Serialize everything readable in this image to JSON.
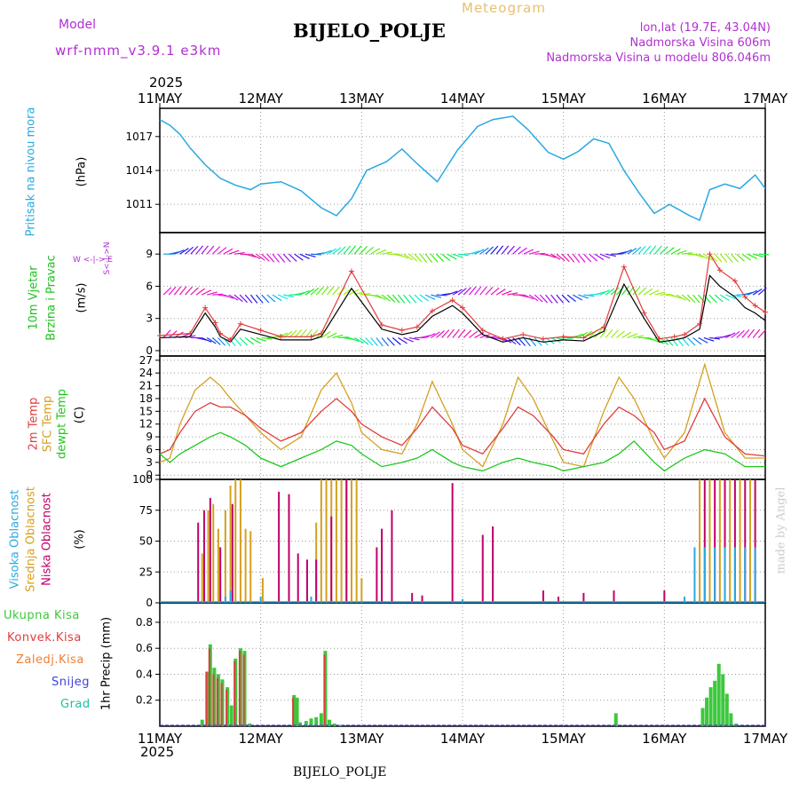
{
  "header": {
    "model_label": "Model",
    "model_name": "wrf-nmm_v3.9.1 e3km",
    "title": "BIJELO_POLJE",
    "subtitle": "Meteogram",
    "lonlat": "lon,lat (19.7E, 43.04N)",
    "elevation": "Nadmorska Visina 606m",
    "model_elevation": "Nadmorska Visina u modelu 806.046m",
    "year_top": "2025",
    "year_bottom": "2025",
    "footer": "BIJELO_POLJE",
    "credit": "made by Angel"
  },
  "colors": {
    "pressure": "#2aa8e0",
    "temp2m": "#e03c3c",
    "sfc_temp": "#d4a020",
    "dewpt": "#1ec81e",
    "high_cloud": "#2aa8e0",
    "mid_cloud": "#d4a020",
    "low_cloud": "#c0006a",
    "total_precip": "#3cc83c",
    "conv_precip": "#e03c3c",
    "frz_precip": "#f08030",
    "snow": "#4040e0",
    "graupel": "#20c0a0",
    "wind_label": "#20c020",
    "dir_legend": "#b030d0"
  },
  "chart_data": [
    {
      "type": "line",
      "name": "pressure",
      "ylabel_outer": "Pritisak na nivou mora",
      "ylabel_inner": "(hPa)",
      "x_days": [
        "11MAY",
        "12MAY",
        "13MAY",
        "14MAY",
        "15MAY",
        "16MAY",
        "17MAY"
      ],
      "ylim": [
        1008.5,
        1019.5
      ],
      "yticks": [
        1011,
        1014,
        1017
      ],
      "series": [
        {
          "name": "MSLP",
          "x": [
            0,
            0.1,
            0.2,
            0.3,
            0.45,
            0.6,
            0.75,
            0.9,
            1.0,
            1.2,
            1.4,
            1.6,
            1.75,
            1.9,
            2.05,
            2.25,
            2.4,
            2.55,
            2.75,
            2.95,
            3.15,
            3.3,
            3.5,
            3.65,
            3.85,
            4.0,
            4.15,
            4.3,
            4.45,
            4.6,
            4.75,
            4.9,
            5.05,
            5.25,
            5.35,
            5.45,
            5.6,
            5.75,
            5.9,
            6.0
          ],
          "values": [
            1018.5,
            1018.0,
            1017.2,
            1016.0,
            1014.5,
            1013.3,
            1012.7,
            1012.3,
            1012.8,
            1013.0,
            1012.2,
            1010.7,
            1010.0,
            1011.5,
            1014.0,
            1014.8,
            1015.9,
            1014.6,
            1013.0,
            1015.8,
            1017.9,
            1018.5,
            1018.8,
            1017.6,
            1015.6,
            1015.0,
            1015.7,
            1016.8,
            1016.4,
            1014.0,
            1012.0,
            1010.2,
            1011.0,
            1010.0,
            1009.6,
            1012.3,
            1012.8,
            1012.4,
            1013.6,
            1012.4
          ]
        }
      ]
    },
    {
      "type": "line",
      "name": "wind",
      "ylabel_outer_1": "10m Vjetar",
      "ylabel_outer_2": "Brzina i Pravac",
      "ylabel_inner": "(m/s)",
      "dir_legend_1": "W <-|-> E",
      "dir_legend_2": "S<-|->N",
      "ylim": [
        -0.5,
        11
      ],
      "yticks": [
        0,
        3,
        6,
        9
      ],
      "series": [
        {
          "name": "speed",
          "x": [
            0,
            0.3,
            0.45,
            0.55,
            0.6,
            0.7,
            0.8,
            1.0,
            1.2,
            1.5,
            1.6,
            1.9,
            2.2,
            2.4,
            2.55,
            2.7,
            2.9,
            3.0,
            3.2,
            3.4,
            3.6,
            3.8,
            4.0,
            4.2,
            4.4,
            4.6,
            4.8,
            4.95,
            5.1,
            5.2,
            5.35,
            5.45,
            5.55,
            5.7,
            5.8,
            5.9,
            6.0
          ],
          "values": [
            1.2,
            1.3,
            3.5,
            2.2,
            1.3,
            0.8,
            2.0,
            1.5,
            1.0,
            1.0,
            1.3,
            5.8,
            2.0,
            1.5,
            1.8,
            3.2,
            4.2,
            3.5,
            1.5,
            0.8,
            1.2,
            0.8,
            1.0,
            0.9,
            1.8,
            6.2,
            3.0,
            0.8,
            1.0,
            1.2,
            2.0,
            7.0,
            6.0,
            5.0,
            4.0,
            3.5,
            2.8
          ]
        },
        {
          "name": "gust",
          "x": [
            0,
            0.3,
            0.45,
            0.55,
            0.6,
            0.7,
            0.8,
            1.0,
            1.2,
            1.5,
            1.6,
            1.9,
            2.2,
            2.4,
            2.55,
            2.7,
            2.9,
            3.0,
            3.2,
            3.4,
            3.6,
            3.8,
            4.0,
            4.2,
            4.4,
            4.6,
            4.8,
            4.95,
            5.1,
            5.2,
            5.35,
            5.45,
            5.55,
            5.7,
            5.8,
            5.9,
            6.0
          ],
          "values": [
            1.4,
            1.6,
            4.0,
            2.6,
            1.6,
            1.0,
            2.5,
            1.9,
            1.3,
            1.3,
            1.6,
            7.4,
            2.4,
            1.9,
            2.2,
            3.7,
            4.7,
            4.0,
            1.9,
            1.1,
            1.5,
            1.1,
            1.3,
            1.2,
            2.2,
            7.8,
            3.5,
            1.1,
            1.3,
            1.5,
            2.5,
            9.0,
            7.5,
            6.5,
            5.0,
            4.2,
            3.6
          ]
        }
      ]
    },
    {
      "type": "line",
      "name": "temperature",
      "ylabel_outer_1": "2m Temp",
      "ylabel_outer_2": "SFC Temp",
      "ylabel_outer_3": "dewpt Temp",
      "ylabel_inner": "(C)",
      "ylim": [
        -1,
        28
      ],
      "yticks": [
        0,
        3,
        6,
        9,
        12,
        15,
        18,
        21,
        24,
        27
      ],
      "series": [
        {
          "name": "2m Temp",
          "x": [
            0,
            0.1,
            0.2,
            0.35,
            0.5,
            0.6,
            0.7,
            0.85,
            1.0,
            1.2,
            1.4,
            1.6,
            1.75,
            1.9,
            2.0,
            2.2,
            2.4,
            2.55,
            2.7,
            2.9,
            3.0,
            3.2,
            3.4,
            3.55,
            3.7,
            3.9,
            4.0,
            4.2,
            4.4,
            4.55,
            4.7,
            4.9,
            5.0,
            5.2,
            5.4,
            5.6,
            5.8,
            6.0
          ],
          "values": [
            5,
            6,
            10,
            15,
            17,
            16,
            16,
            14,
            11,
            8,
            10,
            15,
            18,
            15,
            12,
            9,
            7,
            11,
            16,
            11,
            7,
            5,
            11,
            16,
            14,
            9,
            6,
            5,
            12,
            16,
            14,
            10,
            6,
            8,
            18,
            9,
            5,
            4.5
          ]
        },
        {
          "name": "SFC Temp",
          "x": [
            0,
            0.1,
            0.2,
            0.35,
            0.5,
            0.6,
            0.7,
            0.85,
            1.0,
            1.2,
            1.4,
            1.6,
            1.75,
            1.9,
            2.0,
            2.2,
            2.4,
            2.55,
            2.7,
            2.9,
            3.0,
            3.2,
            3.4,
            3.55,
            3.7,
            3.9,
            4.0,
            4.2,
            4.4,
            4.55,
            4.7,
            4.9,
            5.0,
            5.2,
            5.4,
            5.6,
            5.8,
            6.0
          ],
          "values": [
            3,
            4,
            12,
            20,
            23,
            21,
            18,
            14,
            10,
            6,
            9,
            20,
            24,
            17,
            10,
            6,
            5,
            12,
            22,
            12,
            6,
            2,
            12,
            23,
            18,
            8,
            3,
            2,
            15,
            23,
            18,
            8,
            4,
            10,
            26,
            10,
            4,
            4
          ]
        },
        {
          "name": "dewpt Temp",
          "x": [
            0,
            0.1,
            0.2,
            0.35,
            0.5,
            0.6,
            0.7,
            0.85,
            1.0,
            1.2,
            1.4,
            1.6,
            1.75,
            1.9,
            2.0,
            2.2,
            2.4,
            2.55,
            2.7,
            2.9,
            3.0,
            3.2,
            3.4,
            3.55,
            3.7,
            3.9,
            4.0,
            4.2,
            4.4,
            4.55,
            4.7,
            4.9,
            5.0,
            5.2,
            5.4,
            5.6,
            5.8,
            6.0
          ],
          "values": [
            5,
            3,
            5,
            7,
            9,
            10,
            9,
            7,
            4,
            2,
            4,
            6,
            8,
            7,
            5,
            2,
            3,
            4,
            6,
            3,
            2,
            1,
            3,
            4,
            3,
            2,
            1,
            2,
            3,
            5,
            8,
            3,
            1,
            4,
            6,
            5,
            2,
            2
          ]
        }
      ]
    },
    {
      "type": "bar",
      "name": "clouds",
      "ylabel_outer_1": "Visoka Oblacnost",
      "ylabel_outer_2": "Srednja Oblacnost",
      "ylabel_outer_3": "Niska Oblacnost",
      "ylabel_inner": "(%)",
      "ylim": [
        0,
        100
      ],
      "yticks": [
        0,
        25,
        50,
        75,
        100
      ],
      "series": [
        {
          "name": "mid",
          "x": [
            0.42,
            0.48,
            0.53,
            0.58,
            0.65,
            0.7,
            0.75,
            0.8,
            0.85,
            0.9,
            1.02,
            1.55,
            1.6,
            1.65,
            1.7,
            1.75,
            1.8,
            1.85,
            1.9,
            1.95,
            2.0,
            5.35,
            5.45,
            5.55,
            5.65,
            5.75,
            5.85
          ],
          "values": [
            40,
            75,
            80,
            60,
            75,
            95,
            100,
            100,
            60,
            58,
            20,
            65,
            100,
            100,
            100,
            100,
            100,
            100,
            100,
            100,
            20,
            100,
            100,
            100,
            100,
            100,
            100
          ]
        },
        {
          "name": "low",
          "x": [
            0.38,
            0.44,
            0.5,
            0.6,
            0.72,
            1.18,
            1.28,
            1.37,
            1.46,
            1.55,
            1.7,
            1.85,
            2.15,
            2.2,
            2.3,
            2.5,
            2.6,
            2.9,
            3.2,
            3.3,
            3.8,
            3.95,
            4.2,
            4.5,
            5.0,
            5.4,
            5.5,
            5.6,
            5.7,
            5.8,
            5.9
          ],
          "values": [
            65,
            75,
            85,
            45,
            80,
            90,
            88,
            40,
            35,
            35,
            70,
            100,
            45,
            60,
            75,
            8,
            6,
            97,
            55,
            62,
            10,
            5,
            8,
            10,
            10,
            100,
            100,
            100,
            100,
            100,
            100
          ]
        },
        {
          "name": "high",
          "x": [
            0.65,
            0.7,
            1.0,
            1.5,
            3.0,
            5.2,
            5.3,
            5.4,
            5.5,
            5.6,
            5.7,
            5.8,
            5.9
          ],
          "values": [
            5,
            10,
            5,
            5,
            3,
            5,
            45,
            45,
            45,
            45,
            45,
            45,
            45
          ]
        }
      ]
    },
    {
      "type": "bar",
      "name": "precip",
      "ylabel_outer_1": "Ukupna Kisa",
      "ylabel_outer_2": "Konvek.Kisa",
      "ylabel_outer_3": "Zaledj.Kisa",
      "ylabel_outer_4": "Snijeg",
      "ylabel_outer_5": "Grad",
      "ylabel_inner": "1hr Precip (mm)",
      "ylim": [
        0,
        0.95
      ],
      "yticks": [
        0.2,
        0.4,
        0.6,
        0.8
      ],
      "series": [
        {
          "name": "total",
          "x": [
            0.42,
            0.47,
            0.5,
            0.54,
            0.58,
            0.62,
            0.67,
            0.71,
            0.75,
            0.8,
            0.84,
            0.89,
            1.33,
            1.36,
            1.39,
            1.45,
            1.5,
            1.55,
            1.6,
            1.64,
            1.68,
            1.73,
            1.79,
            4.52,
            5.38,
            5.42,
            5.46,
            5.5,
            5.54,
            5.58,
            5.62,
            5.66,
            5.71
          ],
          "values": [
            0.05,
            0.42,
            0.63,
            0.45,
            0.4,
            0.36,
            0.3,
            0.16,
            0.52,
            0.6,
            0.58,
            0.02,
            0.24,
            0.22,
            0.03,
            0.04,
            0.06,
            0.07,
            0.1,
            0.58,
            0.05,
            0.02,
            0.01,
            0.1,
            0.14,
            0.22,
            0.3,
            0.35,
            0.48,
            0.4,
            0.25,
            0.1,
            0.02
          ]
        },
        {
          "name": "convective",
          "x": [
            0.47,
            0.5,
            0.54,
            0.58,
            0.62,
            0.67,
            0.75,
            0.8,
            0.84,
            1.33,
            1.64
          ],
          "values": [
            0.42,
            0.6,
            0.4,
            0.37,
            0.33,
            0.28,
            0.5,
            0.58,
            0.55,
            0.22,
            0.55
          ]
        }
      ]
    }
  ]
}
